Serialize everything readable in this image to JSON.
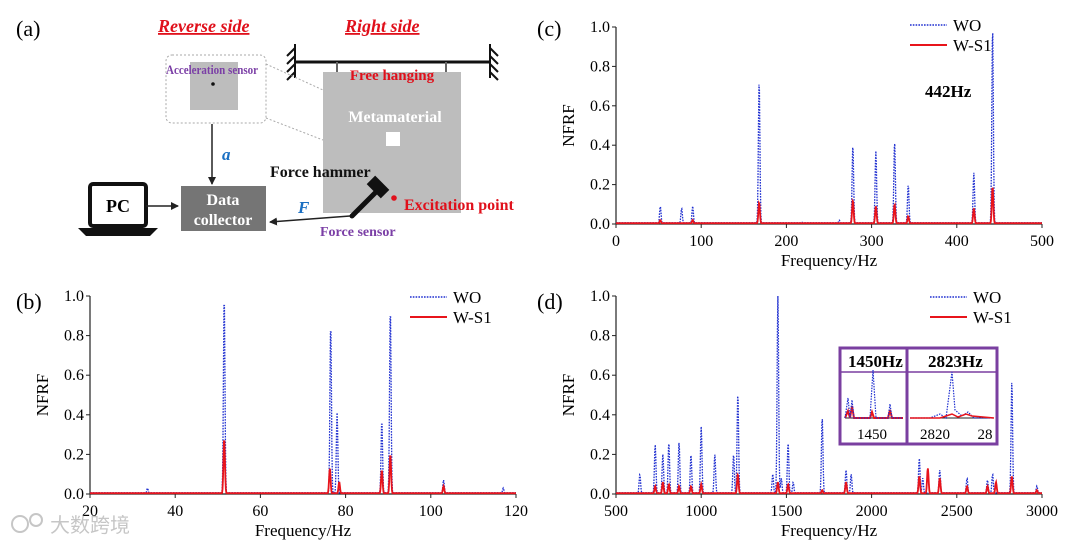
{
  "panel_labels": {
    "a": "(a)",
    "b": "(b)",
    "c": "(c)",
    "d": "(d)"
  },
  "colors": {
    "wo": "#1f2fd0",
    "ws1": "#e8141b",
    "inset_border": "#7a3fa0",
    "box_gray": "#bdbdbd",
    "dark_gray": "#757575",
    "purple_text": "#7b3fa6",
    "blue_text": "#1a6fc2",
    "red_text": "#e0101b"
  },
  "diagram": {
    "reverse_side": "Reverse side",
    "right_side": "Right side",
    "acceleration_sensor": "Acceleration sensor",
    "free_hanging": "Free hanging",
    "metamaterial": "Metamaterial",
    "force_hammer": "Force hammer",
    "excitation_point": "Excitation point",
    "force_sensor": "Force sensor",
    "pc": "PC",
    "data_collector_1": "Data",
    "data_collector_2": "collector",
    "signal_a": "a",
    "signal_f": "F",
    "icons": [
      "hammer-icon",
      "laptop-icon",
      "wall-support-icon"
    ]
  },
  "chart_data": [
    {
      "id": "b",
      "type": "line",
      "title": "",
      "xlabel": "Frequency/Hz",
      "ylabel": "NFRF",
      "xlim": [
        20,
        120
      ],
      "ylim": [
        0,
        1.0
      ],
      "xticks": [
        20,
        40,
        60,
        80,
        100,
        120
      ],
      "yticks": [
        0.0,
        0.2,
        0.4,
        0.6,
        0.8,
        1.0
      ],
      "legend": [
        "WO",
        "W-S1"
      ],
      "series": [
        {
          "name": "WO",
          "style": "dotted",
          "peaks": [
            [
              33.5,
              0.03
            ],
            [
              51.5,
              1.0
            ],
            [
              76.5,
              0.86
            ],
            [
              78,
              0.41
            ],
            [
              88.5,
              0.37
            ],
            [
              90.5,
              0.94
            ],
            [
              103,
              0.07
            ],
            [
              117,
              0.03
            ]
          ]
        },
        {
          "name": "W-S1",
          "style": "solid",
          "peaks": [
            [
              51.5,
              0.28
            ],
            [
              76.3,
              0.13
            ],
            [
              78.5,
              0.06
            ],
            [
              88.5,
              0.12
            ],
            [
              90.5,
              0.2
            ],
            [
              103,
              0.04
            ]
          ]
        }
      ]
    },
    {
      "id": "c",
      "type": "line",
      "title": "",
      "xlabel": "Frequency/Hz",
      "ylabel": "NFRF",
      "xlim": [
        0,
        500
      ],
      "ylim": [
        0,
        1.0
      ],
      "xticks": [
        0,
        100,
        200,
        300,
        400,
        500
      ],
      "yticks": [
        0.0,
        0.2,
        0.4,
        0.6,
        0.8,
        1.0
      ],
      "legend": [
        "WO",
        "W-S1"
      ],
      "annotation": "442Hz",
      "series": [
        {
          "name": "WO",
          "style": "dotted",
          "peaks": [
            [
              52,
              0.09
            ],
            [
              77,
              0.08
            ],
            [
              90,
              0.09
            ],
            [
              168,
              0.73
            ],
            [
              218,
              0.01
            ],
            [
              262,
              0.02
            ],
            [
              278,
              0.4
            ],
            [
              305,
              0.37
            ],
            [
              327,
              0.42
            ],
            [
              343,
              0.2
            ],
            [
              420,
              0.26
            ],
            [
              442,
              1.0
            ]
          ]
        },
        {
          "name": "W-S1",
          "style": "solid",
          "peaks": [
            [
              52,
              0.02
            ],
            [
              90,
              0.02
            ],
            [
              168,
              0.11
            ],
            [
              278,
              0.12
            ],
            [
              305,
              0.09
            ],
            [
              327,
              0.1
            ],
            [
              343,
              0.04
            ],
            [
              420,
              0.08
            ],
            [
              442,
              0.19
            ]
          ]
        }
      ]
    },
    {
      "id": "d",
      "type": "line",
      "title": "",
      "xlabel": "Frequency/Hz",
      "ylabel": "NFRF",
      "xlim": [
        500,
        3000
      ],
      "ylim": [
        0,
        1.0
      ],
      "xticks": [
        500,
        1000,
        1500,
        2000,
        2500,
        3000
      ],
      "yticks": [
        0.0,
        0.2,
        0.4,
        0.6,
        0.8,
        1.0
      ],
      "legend": [
        "WO",
        "W-S1"
      ],
      "inset": {
        "labels": [
          "1450Hz",
          "2823Hz"
        ],
        "ticks_left": [
          "1450"
        ],
        "ticks_right": [
          "2820",
          "28"
        ]
      },
      "series": [
        {
          "name": "WO",
          "style": "dotted",
          "peaks": [
            [
              640,
              0.1
            ],
            [
              730,
              0.25
            ],
            [
              775,
              0.2
            ],
            [
              810,
              0.26
            ],
            [
              870,
              0.26
            ],
            [
              940,
              0.2
            ],
            [
              1000,
              0.34
            ],
            [
              1080,
              0.2
            ],
            [
              1190,
              0.2
            ],
            [
              1215,
              0.51
            ],
            [
              1420,
              0.1
            ],
            [
              1450,
              1.0
            ],
            [
              1470,
              0.08
            ],
            [
              1510,
              0.26
            ],
            [
              1540,
              0.06
            ],
            [
              1710,
              0.39
            ],
            [
              1850,
              0.12
            ],
            [
              1880,
              0.1
            ],
            [
              2280,
              0.18
            ],
            [
              2300,
              0.08
            ],
            [
              2400,
              0.12
            ],
            [
              2560,
              0.08
            ],
            [
              2680,
              0.07
            ],
            [
              2710,
              0.1
            ],
            [
              2823,
              0.57
            ],
            [
              2970,
              0.04
            ]
          ]
        },
        {
          "name": "W-S1",
          "style": "solid",
          "peaks": [
            [
              730,
              0.04
            ],
            [
              775,
              0.06
            ],
            [
              810,
              0.05
            ],
            [
              870,
              0.04
            ],
            [
              940,
              0.04
            ],
            [
              1000,
              0.05
            ],
            [
              1215,
              0.1
            ],
            [
              1450,
              0.06
            ],
            [
              1510,
              0.05
            ],
            [
              1710,
              0.02
            ],
            [
              1850,
              0.06
            ],
            [
              2280,
              0.09
            ],
            [
              2330,
              0.13
            ],
            [
              2400,
              0.08
            ],
            [
              2560,
              0.04
            ],
            [
              2680,
              0.04
            ],
            [
              2730,
              0.06
            ],
            [
              2823,
              0.09
            ],
            [
              2970,
              0.02
            ]
          ]
        }
      ]
    }
  ],
  "watermark": "大数跨境"
}
